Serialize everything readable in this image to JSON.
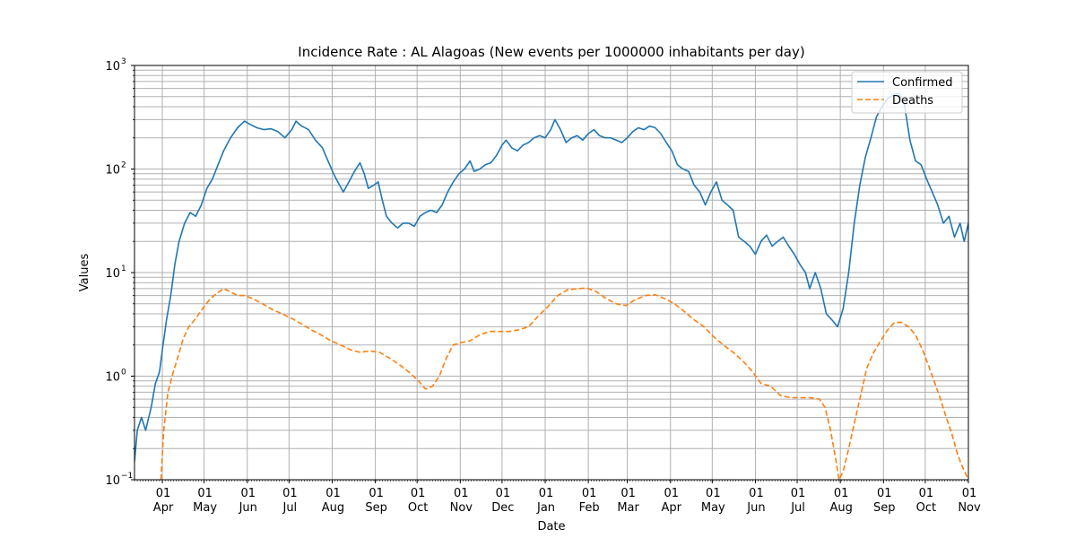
{
  "chart_data": {
    "type": "line",
    "title": "Incidence Rate : AL Alagoas (New events per 1000000 inhabitants per day)",
    "xlabel": "Date",
    "ylabel": "Values",
    "yscale": "log",
    "ylim": [
      0.1,
      1000
    ],
    "y_ticks": [
      {
        "value": 0.1,
        "base": "10",
        "exp": "−1"
      },
      {
        "value": 1,
        "label": "10",
        "exp": "0"
      },
      {
        "value": 10,
        "label": "10",
        "exp": "1"
      },
      {
        "value": 100,
        "label": "10",
        "exp": "2"
      },
      {
        "value": 1000,
        "label": "10",
        "exp": "3"
      }
    ],
    "xlim": [
      "2020-03-12",
      "2021-11-01"
    ],
    "x_ticks": [
      {
        "date": "2020-04-01",
        "day": "01",
        "month": "Apr"
      },
      {
        "date": "2020-05-01",
        "day": "01",
        "month": "May"
      },
      {
        "date": "2020-06-01",
        "day": "01",
        "month": "Jun"
      },
      {
        "date": "2020-07-01",
        "day": "01",
        "month": "Jul"
      },
      {
        "date": "2020-08-01",
        "day": "01",
        "month": "Aug"
      },
      {
        "date": "2020-09-01",
        "day": "01",
        "month": "Sep"
      },
      {
        "date": "2020-10-01",
        "day": "01",
        "month": "Oct"
      },
      {
        "date": "2020-11-01",
        "day": "01",
        "month": "Nov"
      },
      {
        "date": "2020-12-01",
        "day": "01",
        "month": "Dec"
      },
      {
        "date": "2021-01-01",
        "day": "01",
        "month": "Jan"
      },
      {
        "date": "2021-02-01",
        "day": "01",
        "month": "Feb"
      },
      {
        "date": "2021-03-01",
        "day": "01",
        "month": "Mar"
      },
      {
        "date": "2021-04-01",
        "day": "01",
        "month": "Apr"
      },
      {
        "date": "2021-05-01",
        "day": "01",
        "month": "May"
      },
      {
        "date": "2021-06-01",
        "day": "01",
        "month": "Jun"
      },
      {
        "date": "2021-07-01",
        "day": "01",
        "month": "Jul"
      },
      {
        "date": "2021-08-01",
        "day": "01",
        "month": "Aug"
      },
      {
        "date": "2021-09-01",
        "day": "01",
        "month": "Sep"
      },
      {
        "date": "2021-10-01",
        "day": "01",
        "month": "Oct"
      },
      {
        "date": "2021-11-01",
        "day": "01",
        "month": "Nov"
      }
    ],
    "grid": true,
    "legend_position": "top-right",
    "series": [
      {
        "name": "Confirmed",
        "color": "#1f77b4",
        "style": "solid",
        "points": [
          [
            "2020-03-12",
            0.15
          ],
          [
            "2020-03-14",
            0.3
          ],
          [
            "2020-03-17",
            0.4
          ],
          [
            "2020-03-20",
            0.3
          ],
          [
            "2020-03-24",
            0.5
          ],
          [
            "2020-03-27",
            0.85
          ],
          [
            "2020-03-30",
            1.1
          ],
          [
            "2020-04-01",
            1.8
          ],
          [
            "2020-04-04",
            3.5
          ],
          [
            "2020-04-07",
            6
          ],
          [
            "2020-04-10",
            12
          ],
          [
            "2020-04-13",
            20
          ],
          [
            "2020-04-17",
            30
          ],
          [
            "2020-04-21",
            38
          ],
          [
            "2020-04-25",
            35
          ],
          [
            "2020-04-29",
            45
          ],
          [
            "2020-05-03",
            65
          ],
          [
            "2020-05-07",
            80
          ],
          [
            "2020-05-11",
            110
          ],
          [
            "2020-05-15",
            150
          ],
          [
            "2020-05-20",
            200
          ],
          [
            "2020-05-25",
            250
          ],
          [
            "2020-05-30",
            290
          ],
          [
            "2020-06-03",
            270
          ],
          [
            "2020-06-08",
            250
          ],
          [
            "2020-06-13",
            240
          ],
          [
            "2020-06-18",
            245
          ],
          [
            "2020-06-23",
            230
          ],
          [
            "2020-06-28",
            200
          ],
          [
            "2020-07-03",
            240
          ],
          [
            "2020-07-06",
            290
          ],
          [
            "2020-07-10",
            260
          ],
          [
            "2020-07-15",
            240
          ],
          [
            "2020-07-20",
            190
          ],
          [
            "2020-07-25",
            160
          ],
          [
            "2020-07-29",
            120
          ],
          [
            "2020-08-02",
            90
          ],
          [
            "2020-08-05",
            75
          ],
          [
            "2020-08-09",
            60
          ],
          [
            "2020-08-13",
            75
          ],
          [
            "2020-08-17",
            95
          ],
          [
            "2020-08-21",
            115
          ],
          [
            "2020-08-24",
            90
          ],
          [
            "2020-08-27",
            65
          ],
          [
            "2020-08-31",
            70
          ],
          [
            "2020-09-03",
            75
          ],
          [
            "2020-09-06",
            50
          ],
          [
            "2020-09-09",
            35
          ],
          [
            "2020-09-13",
            30
          ],
          [
            "2020-09-17",
            27
          ],
          [
            "2020-09-21",
            30
          ],
          [
            "2020-09-25",
            30
          ],
          [
            "2020-09-29",
            28
          ],
          [
            "2020-10-03",
            35
          ],
          [
            "2020-10-07",
            38
          ],
          [
            "2020-10-11",
            40
          ],
          [
            "2020-10-15",
            38
          ],
          [
            "2020-10-19",
            45
          ],
          [
            "2020-10-23",
            60
          ],
          [
            "2020-10-27",
            75
          ],
          [
            "2020-10-31",
            90
          ],
          [
            "2020-11-04",
            100
          ],
          [
            "2020-11-08",
            120
          ],
          [
            "2020-11-11",
            95
          ],
          [
            "2020-11-15",
            100
          ],
          [
            "2020-11-19",
            110
          ],
          [
            "2020-11-23",
            115
          ],
          [
            "2020-11-27",
            135
          ],
          [
            "2020-12-01",
            170
          ],
          [
            "2020-12-04",
            190
          ],
          [
            "2020-12-08",
            160
          ],
          [
            "2020-12-12",
            150
          ],
          [
            "2020-12-16",
            170
          ],
          [
            "2020-12-20",
            180
          ],
          [
            "2020-12-24",
            200
          ],
          [
            "2020-12-28",
            210
          ],
          [
            "2021-01-01",
            200
          ],
          [
            "2021-01-05",
            240
          ],
          [
            "2021-01-08",
            300
          ],
          [
            "2021-01-12",
            240
          ],
          [
            "2021-01-16",
            180
          ],
          [
            "2021-01-20",
            200
          ],
          [
            "2021-01-24",
            210
          ],
          [
            "2021-01-28",
            190
          ],
          [
            "2021-02-01",
            220
          ],
          [
            "2021-02-05",
            240
          ],
          [
            "2021-02-09",
            210
          ],
          [
            "2021-02-13",
            200
          ],
          [
            "2021-02-17",
            200
          ],
          [
            "2021-02-21",
            190
          ],
          [
            "2021-02-25",
            180
          ],
          [
            "2021-03-01",
            200
          ],
          [
            "2021-03-05",
            230
          ],
          [
            "2021-03-09",
            250
          ],
          [
            "2021-03-13",
            240
          ],
          [
            "2021-03-17",
            260
          ],
          [
            "2021-03-21",
            250
          ],
          [
            "2021-03-25",
            220
          ],
          [
            "2021-03-29",
            180
          ],
          [
            "2021-04-02",
            150
          ],
          [
            "2021-04-06",
            110
          ],
          [
            "2021-04-10",
            100
          ],
          [
            "2021-04-14",
            95
          ],
          [
            "2021-04-18",
            70
          ],
          [
            "2021-04-22",
            60
          ],
          [
            "2021-04-26",
            45
          ],
          [
            "2021-04-30",
            60
          ],
          [
            "2021-05-04",
            75
          ],
          [
            "2021-05-08",
            50
          ],
          [
            "2021-05-12",
            45
          ],
          [
            "2021-05-16",
            40
          ],
          [
            "2021-05-20",
            22
          ],
          [
            "2021-05-24",
            20
          ],
          [
            "2021-05-28",
            18
          ],
          [
            "2021-06-01",
            15
          ],
          [
            "2021-06-05",
            20
          ],
          [
            "2021-06-09",
            23
          ],
          [
            "2021-06-13",
            18
          ],
          [
            "2021-06-17",
            20
          ],
          [
            "2021-06-21",
            22
          ],
          [
            "2021-06-25",
            18
          ],
          [
            "2021-06-29",
            15
          ],
          [
            "2021-07-03",
            12
          ],
          [
            "2021-07-07",
            10
          ],
          [
            "2021-07-10",
            7
          ],
          [
            "2021-07-14",
            10
          ],
          [
            "2021-07-18",
            7
          ],
          [
            "2021-07-22",
            4
          ],
          [
            "2021-07-26",
            3.5
          ],
          [
            "2021-07-30",
            3
          ],
          [
            "2021-08-03",
            4.5
          ],
          [
            "2021-08-07",
            10
          ],
          [
            "2021-08-11",
            30
          ],
          [
            "2021-08-15",
            70
          ],
          [
            "2021-08-19",
            130
          ],
          [
            "2021-08-23",
            200
          ],
          [
            "2021-08-27",
            320
          ],
          [
            "2021-08-31",
            400
          ],
          [
            "2021-09-04",
            480
          ],
          [
            "2021-09-08",
            520
          ],
          [
            "2021-09-12",
            540
          ],
          [
            "2021-09-16",
            420
          ],
          [
            "2021-09-20",
            190
          ],
          [
            "2021-09-24",
            120
          ],
          [
            "2021-09-28",
            110
          ],
          [
            "2021-10-02",
            80
          ],
          [
            "2021-10-06",
            60
          ],
          [
            "2021-10-10",
            45
          ],
          [
            "2021-10-14",
            30
          ],
          [
            "2021-10-18",
            35
          ],
          [
            "2021-10-22",
            22
          ],
          [
            "2021-10-26",
            30
          ],
          [
            "2021-10-29",
            20
          ],
          [
            "2021-11-01",
            30
          ]
        ]
      },
      {
        "name": "Deaths",
        "color": "#ff7f0e",
        "style": "dashed",
        "points": [
          [
            "2020-03-31",
            0.1
          ],
          [
            "2020-04-02",
            0.3
          ],
          [
            "2020-04-05",
            0.7
          ],
          [
            "2020-04-08",
            1.0
          ],
          [
            "2020-04-12",
            1.5
          ],
          [
            "2020-04-16",
            2.3
          ],
          [
            "2020-04-20",
            3.0
          ],
          [
            "2020-04-25",
            3.6
          ],
          [
            "2020-04-30",
            4.5
          ],
          [
            "2020-05-05",
            5.5
          ],
          [
            "2020-05-10",
            6.3
          ],
          [
            "2020-05-15",
            7.0
          ],
          [
            "2020-05-20",
            6.5
          ],
          [
            "2020-05-25",
            6.0
          ],
          [
            "2020-05-30",
            6.0
          ],
          [
            "2020-06-05",
            5.6
          ],
          [
            "2020-06-12",
            5.0
          ],
          [
            "2020-06-19",
            4.4
          ],
          [
            "2020-06-26",
            4.0
          ],
          [
            "2020-07-03",
            3.6
          ],
          [
            "2020-07-10",
            3.2
          ],
          [
            "2020-07-17",
            2.8
          ],
          [
            "2020-07-24",
            2.5
          ],
          [
            "2020-07-31",
            2.2
          ],
          [
            "2020-08-07",
            2.0
          ],
          [
            "2020-08-14",
            1.8
          ],
          [
            "2020-08-21",
            1.7
          ],
          [
            "2020-08-28",
            1.75
          ],
          [
            "2020-09-04",
            1.7
          ],
          [
            "2020-09-11",
            1.5
          ],
          [
            "2020-09-18",
            1.3
          ],
          [
            "2020-09-25",
            1.1
          ],
          [
            "2020-10-02",
            0.9
          ],
          [
            "2020-10-07",
            0.75
          ],
          [
            "2020-10-12",
            0.8
          ],
          [
            "2020-10-17",
            1.0
          ],
          [
            "2020-10-22",
            1.5
          ],
          [
            "2020-10-27",
            2.0
          ],
          [
            "2020-11-01",
            2.1
          ],
          [
            "2020-11-08",
            2.2
          ],
          [
            "2020-11-15",
            2.5
          ],
          [
            "2020-11-22",
            2.7
          ],
          [
            "2020-11-29",
            2.7
          ],
          [
            "2020-12-06",
            2.7
          ],
          [
            "2020-12-13",
            2.8
          ],
          [
            "2020-12-20",
            3.0
          ],
          [
            "2020-12-27",
            3.8
          ],
          [
            "2021-01-03",
            4.7
          ],
          [
            "2021-01-10",
            6.0
          ],
          [
            "2021-01-17",
            6.8
          ],
          [
            "2021-01-24",
            7.0
          ],
          [
            "2021-01-31",
            7.1
          ],
          [
            "2021-02-07",
            6.5
          ],
          [
            "2021-02-14",
            5.6
          ],
          [
            "2021-02-21",
            5.0
          ],
          [
            "2021-02-28",
            4.8
          ],
          [
            "2021-03-07",
            5.5
          ],
          [
            "2021-03-14",
            6.0
          ],
          [
            "2021-03-21",
            6.1
          ],
          [
            "2021-03-28",
            5.6
          ],
          [
            "2021-04-04",
            5.0
          ],
          [
            "2021-04-11",
            4.2
          ],
          [
            "2021-04-18",
            3.5
          ],
          [
            "2021-04-25",
            3.0
          ],
          [
            "2021-05-02",
            2.4
          ],
          [
            "2021-05-09",
            2.0
          ],
          [
            "2021-05-16",
            1.7
          ],
          [
            "2021-05-23",
            1.4
          ],
          [
            "2021-05-30",
            1.1
          ],
          [
            "2021-06-05",
            0.85
          ],
          [
            "2021-06-12",
            0.8
          ],
          [
            "2021-06-19",
            0.65
          ],
          [
            "2021-06-26",
            0.62
          ],
          [
            "2021-07-03",
            0.62
          ],
          [
            "2021-07-10",
            0.62
          ],
          [
            "2021-07-17",
            0.6
          ],
          [
            "2021-07-21",
            0.5
          ],
          [
            "2021-07-25",
            0.3
          ],
          [
            "2021-07-29",
            0.15
          ],
          [
            "2021-07-31",
            0.1
          ],
          [
            "2021-08-03",
            0.12
          ],
          [
            "2021-08-07",
            0.2
          ],
          [
            "2021-08-11",
            0.35
          ],
          [
            "2021-08-15",
            0.6
          ],
          [
            "2021-08-20",
            1.2
          ],
          [
            "2021-08-25",
            1.7
          ],
          [
            "2021-08-30",
            2.2
          ],
          [
            "2021-09-04",
            2.8
          ],
          [
            "2021-09-09",
            3.3
          ],
          [
            "2021-09-14",
            3.3
          ],
          [
            "2021-09-19",
            3.0
          ],
          [
            "2021-09-24",
            2.5
          ],
          [
            "2021-09-29",
            1.8
          ],
          [
            "2021-10-04",
            1.2
          ],
          [
            "2021-10-08",
            0.85
          ],
          [
            "2021-10-12",
            0.6
          ],
          [
            "2021-10-16",
            0.4
          ],
          [
            "2021-10-20",
            0.28
          ],
          [
            "2021-10-24",
            0.18
          ],
          [
            "2021-10-27",
            0.14
          ],
          [
            "2021-11-01",
            0.1
          ]
        ]
      }
    ]
  }
}
